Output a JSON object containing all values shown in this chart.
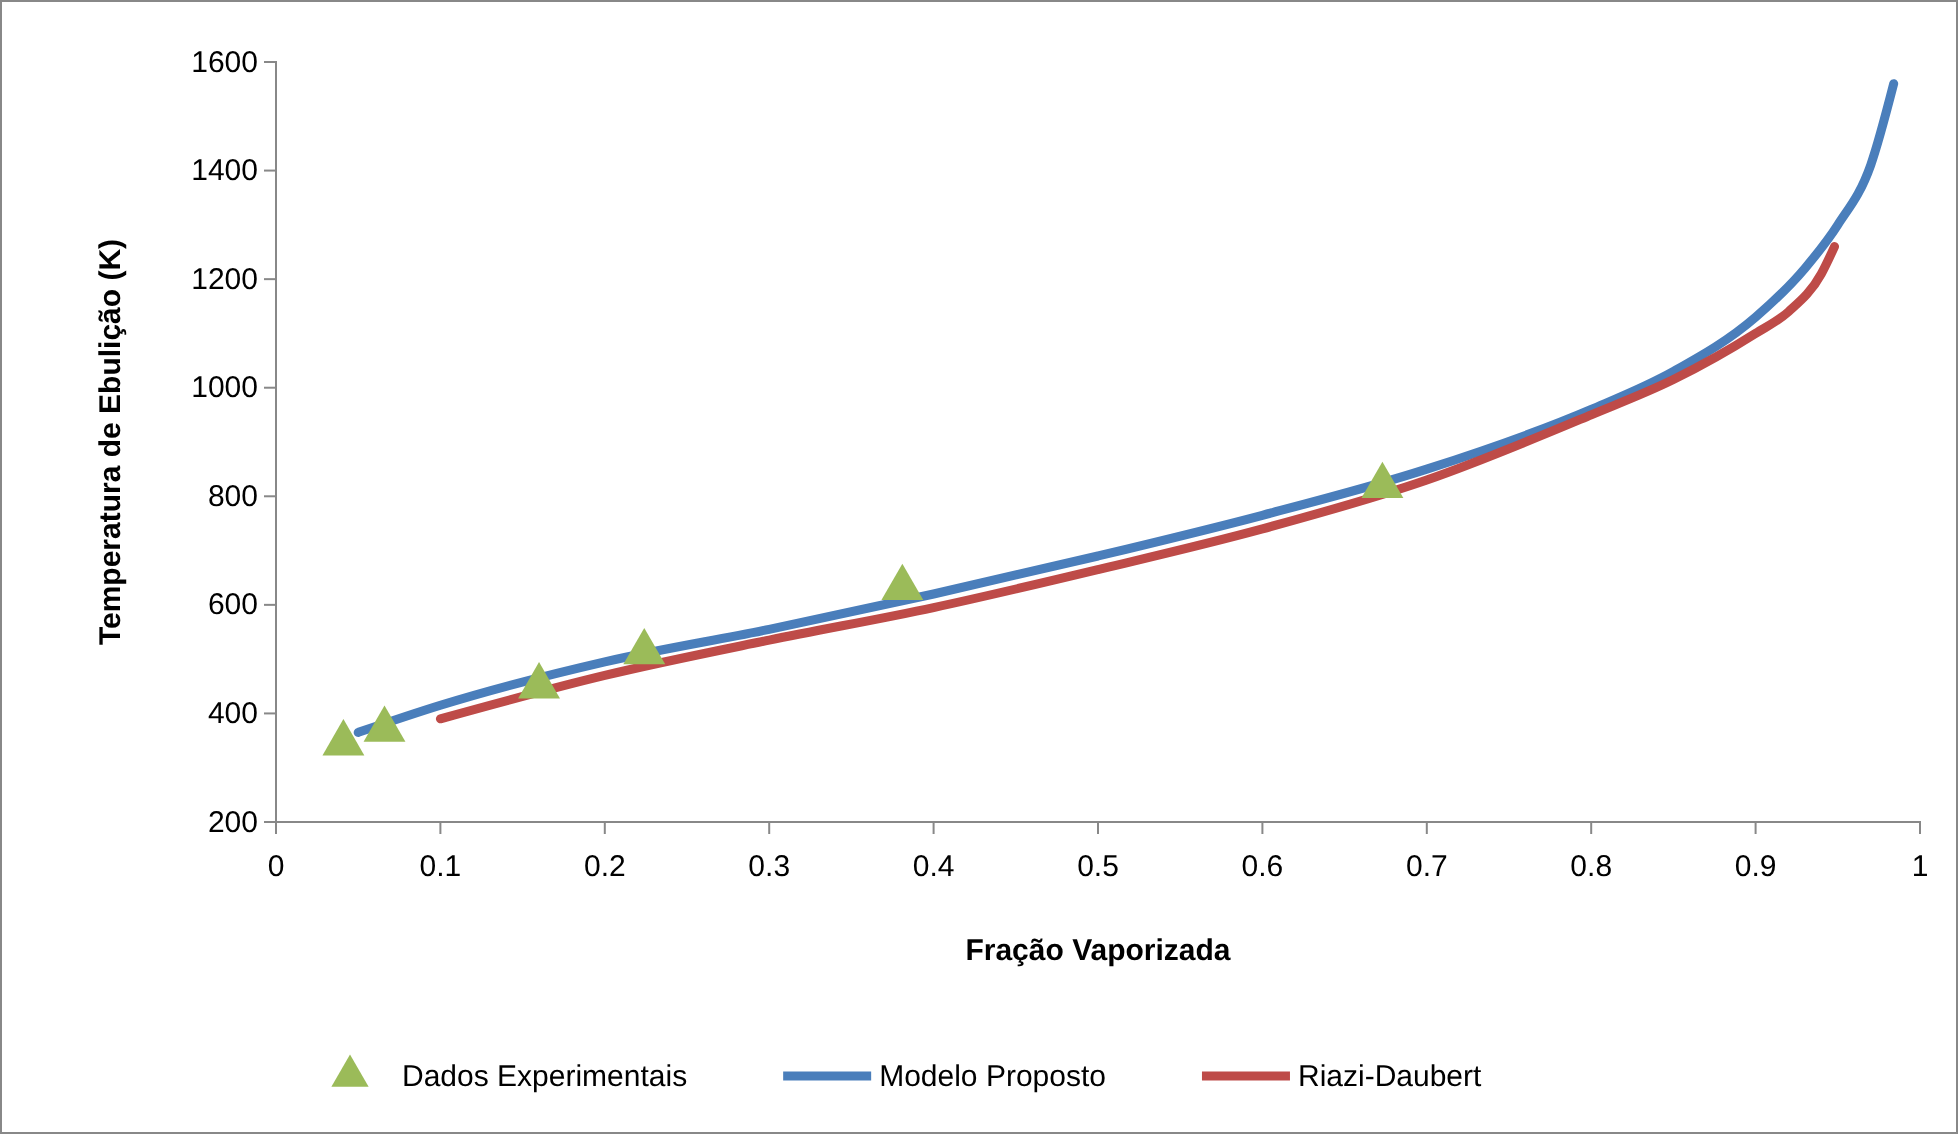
{
  "chart_data": {
    "type": "line",
    "xlabel": "Fração  Vaporizada",
    "ylabel": "Temperatura de Ebulição  (K)",
    "xlim": [
      0,
      1
    ],
    "xticks": [
      0,
      0.1,
      0.2,
      0.3,
      0.4,
      0.5,
      0.6,
      0.7,
      0.8,
      0.9,
      1
    ],
    "ylim": [
      200,
      1600
    ],
    "yticks": [
      200,
      400,
      600,
      800,
      1000,
      1200,
      1400,
      1600
    ],
    "grid": false,
    "legend": "bottom",
    "series": [
      {
        "name": "Dados Experimentais",
        "type": "scatter",
        "marker": "triangle",
        "color": "#9bbb59",
        "x": [
          0.041,
          0.066,
          0.16,
          0.224,
          0.381,
          0.673
        ],
        "values": [
          345,
          370,
          450,
          513,
          631,
          819
        ]
      },
      {
        "name": "Modelo Proposto",
        "color": "#4a7ebb",
        "x": [
          0.05,
          0.1,
          0.2,
          0.3,
          0.4,
          0.5,
          0.6,
          0.7,
          0.8,
          0.85,
          0.9,
          0.93,
          0.95,
          0.97,
          0.984
        ],
        "values": [
          365,
          415,
          495,
          555,
          620,
          690,
          765,
          850,
          960,
          1030,
          1130,
          1220,
          1300,
          1410,
          1560
        ]
      },
      {
        "name": "Riazi-Daubert",
        "color": "#be4b48",
        "x": [
          0.1,
          0.2,
          0.3,
          0.4,
          0.5,
          0.6,
          0.7,
          0.8,
          0.85,
          0.9,
          0.92,
          0.94,
          0.948
        ],
        "values": [
          390,
          470,
          535,
          595,
          665,
          740,
          830,
          950,
          1015,
          1100,
          1140,
          1210,
          1260
        ]
      }
    ]
  }
}
